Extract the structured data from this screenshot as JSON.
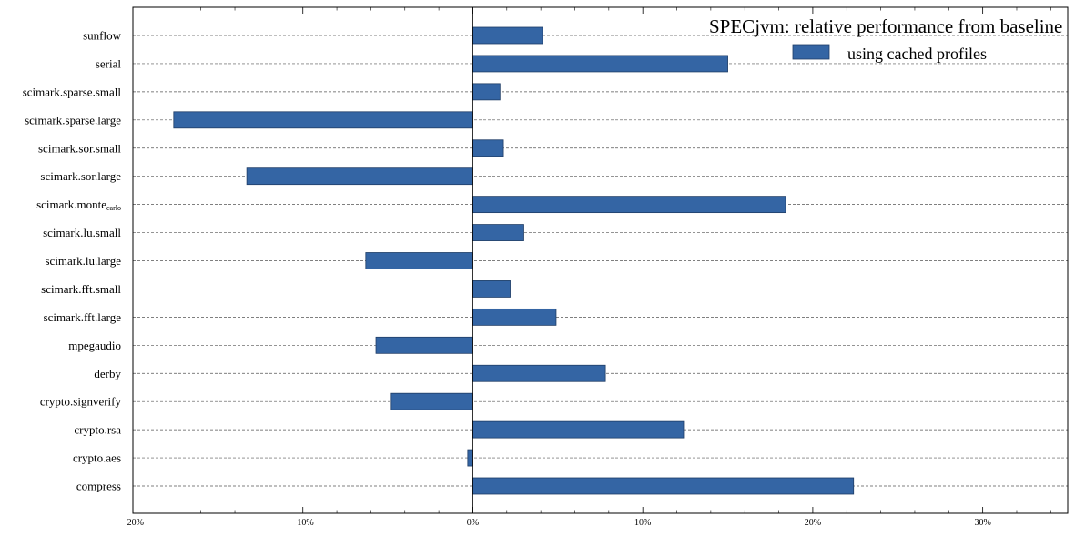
{
  "chart_data": {
    "type": "bar",
    "orientation": "horizontal",
    "title": "SPECjvm: relative performance from baseline",
    "xlabel": "",
    "ylabel": "",
    "xlim": [
      -20,
      35
    ],
    "x_ticks": [
      -20,
      -10,
      0,
      10,
      20,
      30
    ],
    "x_tick_labels": [
      "−20%",
      "−10%",
      "0%",
      "10%",
      "20%",
      "30%"
    ],
    "grid": "horizontal dashed",
    "legend_position": "top-right",
    "bar_color": "#3465a4",
    "categories": [
      "compress",
      "crypto.aes",
      "crypto.rsa",
      "crypto.signverify",
      "derby",
      "mpegaudio",
      "scimark.fft.large",
      "scimark.fft.small",
      "scimark.lu.large",
      "scimark.lu.small",
      "scimark.monte_carlo",
      "scimark.sor.large",
      "scimark.sor.small",
      "scimark.sparse.large",
      "scimark.sparse.small",
      "serial",
      "sunflow"
    ],
    "series": [
      {
        "name": "using cached profiles",
        "values": [
          22.4,
          -0.3,
          12.4,
          -4.8,
          7.8,
          -5.7,
          4.9,
          2.2,
          -6.3,
          3.0,
          18.4,
          -13.3,
          1.8,
          -17.6,
          1.6,
          15.0,
          4.1
        ]
      }
    ]
  }
}
